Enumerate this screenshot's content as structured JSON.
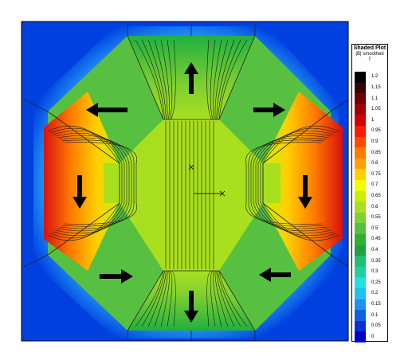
{
  "legend": {
    "title": "Shaded Plot",
    "subtitle": "|B| smoothed",
    "variable": "f",
    "levels": [
      "1.2",
      "1.15",
      "1.1",
      "1.05",
      "1",
      "0.95",
      "0.9",
      "0.85",
      "0.8",
      "0.75",
      "0.7",
      "0.65",
      "0.6",
      "0.55",
      "0.5",
      "0.45",
      "0.4",
      "0.35",
      "0.3",
      "0.25",
      "0.2",
      "0.15",
      "0.1",
      "0.05",
      "0"
    ],
    "colors": [
      "#000000",
      "#3a0000",
      "#6e0000",
      "#a30000",
      "#d20000",
      "#ff1a00",
      "#ff4a00",
      "#ff7a00",
      "#ffa000",
      "#ffd000",
      "#f0ff00",
      "#c8f000",
      "#a8e020",
      "#80d030",
      "#58c040",
      "#30b030",
      "#20a040",
      "#20c070",
      "#20d0a0",
      "#20e0e0",
      "#20c0f0",
      "#2090f0",
      "#1060e0",
      "#0830d8",
      "#0000c8"
    ]
  },
  "plot": {
    "background_color": "#0040e0",
    "arrows": [
      "arrow-up",
      "arrow-down",
      "arrow-left",
      "arrow-right",
      "arrow-left",
      "arrow-right",
      "arrow-right",
      "arrow-left"
    ]
  }
}
